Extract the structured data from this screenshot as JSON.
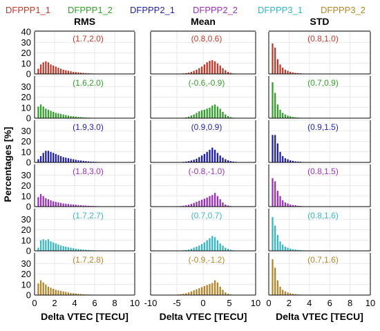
{
  "chart_data": {
    "type": "bar",
    "layout_description": "grid of histograms: 6 rows (one per solution), 3 columns (RMS, Mean, STD)",
    "legend": [
      {
        "name": "DFPPP1_1",
        "color": "#c0392b"
      },
      {
        "name": "DFPPP1_2",
        "color": "#33a02c"
      },
      {
        "name": "DFPPP2_1",
        "color": "#1f1fa8"
      },
      {
        "name": "DFPPP2_2",
        "color": "#9b30b8"
      },
      {
        "name": "DFPPP3_1",
        "color": "#36b7c4"
      },
      {
        "name": "DFPPP3_2",
        "color": "#b5862a"
      }
    ],
    "ylabel": "Percentages [%]",
    "y_ticks": [
      "0",
      "10",
      "20",
      "30",
      "40"
    ],
    "ylim": [
      0,
      40
    ],
    "grid": true,
    "columns": [
      {
        "title": "RMS",
        "xlabel": "Delta VTEC [TECU]",
        "xlim": [
          0,
          10
        ],
        "x_ticks": [
          "0",
          "2",
          "4",
          "6",
          "8",
          "10"
        ],
        "bin_start": 0.0,
        "bin_width": 0.25,
        "panels": [
          {
            "label": "(1.7,2.0)",
            "values": [
              0,
              5,
              9,
              11,
              12,
              11,
              9,
              8,
              7,
              6,
              5,
              4,
              3.5,
              3,
              2.5,
              2,
              1.8,
              1.5,
              1.2,
              1,
              0.8,
              0.6,
              0.5,
              0.4,
              0.3,
              0.2,
              0.15,
              0.1
            ]
          },
          {
            "label": "(1.6,2.0)",
            "values": [
              0,
              11,
              13,
              11,
              9,
              8,
              7,
              6,
              5,
              4.5,
              4,
              3.5,
              3,
              2.5,
              2,
              1.8,
              1.5,
              1.2,
              1,
              0.8,
              0.6,
              0.5,
              0.4,
              0.3,
              0.2,
              0.15,
              0.1,
              0.1
            ]
          },
          {
            "label": "(1.9,3.0)",
            "values": [
              0,
              3,
              6,
              9,
              11,
              11,
              10,
              9,
              8,
              7,
              6,
              5,
              4.5,
              4,
              3.5,
              3,
              2.5,
              2,
              1.8,
              1.5,
              1.2,
              1,
              0.8,
              0.6,
              0.5,
              0.4,
              0.3,
              0.2,
              0.15,
              0.1,
              0.1,
              0.05
            ]
          },
          {
            "label": "(1.8,3.0)",
            "values": [
              0,
              9,
              12,
              10,
              8,
              7,
              6,
              5,
              4.5,
              4,
              3.5,
              3,
              2.8,
              2.5,
              2.2,
              2,
              1.8,
              1.5,
              1.3,
              1.1,
              1,
              0.8,
              0.7,
              0.6,
              0.5,
              0.4,
              0.3,
              0.25,
              0.2,
              0.15,
              0.1,
              0.1
            ]
          },
          {
            "label": "(1.7,2.7)",
            "values": [
              0,
              3,
              10,
              11,
              10,
              11,
              9,
              8,
              7,
              6,
              5,
              4.5,
              4,
              3.5,
              3,
              2.5,
              2,
              1.8,
              1.5,
              1.2,
              1,
              0.8,
              0.6,
              0.5,
              0.4,
              0.3,
              0.2,
              0.15,
              0.1
            ]
          },
          {
            "label": "(1.7,2.8)",
            "values": [
              0,
              11,
              14,
              12,
              10,
              8,
              7,
              6,
              5,
              4.5,
              4,
              3.5,
              3,
              2.5,
              2,
              1.8,
              1.5,
              1.2,
              1,
              0.8,
              0.6,
              0.5,
              0.4,
              0.3,
              0.2,
              0.15,
              0.1,
              0.1
            ]
          }
        ]
      },
      {
        "title": "Mean",
        "xlabel": "Delta VTEC [TECU]",
        "xlim": [
          -10,
          10
        ],
        "x_ticks": [
          "-10",
          "-5",
          "0",
          "5",
          "10"
        ],
        "bin_start": -10.0,
        "bin_width": 0.5,
        "panels": [
          {
            "label": "(0.8,0.6)",
            "values": [
              0,
              0,
              0,
              0,
              0,
              0,
              0,
              0,
              0,
              0.1,
              0.2,
              0.3,
              0.5,
              0.8,
              1.2,
              2,
              3,
              4,
              5.5,
              7,
              9,
              11,
              12.5,
              13,
              12,
              10,
              8,
              5.5,
              3.5,
              2,
              1,
              0.5,
              0.3,
              0.15,
              0.1,
              0,
              0,
              0,
              0,
              0
            ]
          },
          {
            "label": "(-0.6,-0.9)",
            "values": [
              0,
              0,
              0,
              0,
              0,
              0,
              0,
              0,
              0,
              0,
              0.1,
              0.2,
              0.4,
              0.8,
              1.5,
              2.5,
              3.5,
              5,
              6.5,
              7.5,
              8,
              9,
              10,
              12,
              13,
              11,
              9,
              6,
              3.5,
              2,
              1,
              0.5,
              0.2,
              0.1,
              0,
              0,
              0,
              0,
              0,
              0
            ]
          },
          {
            "label": "(0.9,0.9)",
            "values": [
              0,
              0,
              0,
              0,
              0,
              0,
              0,
              0,
              0,
              0.1,
              0.2,
              0.3,
              0.5,
              0.8,
              1.2,
              1.8,
              2.5,
              3.5,
              5,
              6.5,
              8,
              10,
              12,
              14,
              12,
              9,
              6.5,
              4.5,
              3,
              2,
              1.2,
              0.8,
              0.5,
              0.3,
              0.15,
              0.1,
              0,
              0,
              0,
              0
            ]
          },
          {
            "label": "(-0.8,-1.0)",
            "values": [
              0,
              0,
              0,
              0,
              0,
              0,
              0,
              0,
              0.1,
              0.2,
              0.3,
              0.5,
              0.8,
              1.2,
              1.8,
              2.5,
              3.5,
              4.5,
              5.5,
              6.5,
              7.5,
              8.5,
              10,
              11,
              13,
              10,
              7,
              4,
              2,
              1,
              0.5,
              0.2,
              0.1,
              0,
              0,
              0,
              0,
              0,
              0,
              0
            ]
          },
          {
            "label": "(0.7,0.7)",
            "values": [
              0,
              0,
              0,
              0,
              0,
              0,
              0,
              0,
              0,
              0.1,
              0.2,
              0.3,
              0.5,
              0.8,
              1.2,
              2,
              3,
              4,
              5,
              6.5,
              8,
              10,
              12,
              14,
              13,
              10,
              7,
              5,
              3,
              2,
              1,
              0.5,
              0.3,
              0.15,
              0.1,
              0,
              0,
              0,
              0,
              0
            ]
          },
          {
            "label": "(-0.9,-1.2)",
            "values": [
              0,
              0,
              0,
              0,
              0,
              0,
              0,
              0.1,
              0.2,
              0.3,
              0.5,
              0.8,
              1.2,
              1.8,
              2.5,
              3.5,
              4.5,
              5.5,
              6.5,
              7.5,
              8.5,
              9.5,
              10.5,
              11.5,
              14,
              12,
              8,
              5,
              2.5,
              1.2,
              0.6,
              0.3,
              0.1,
              0,
              0,
              0,
              0,
              0,
              0,
              0
            ]
          }
        ]
      },
      {
        "title": "STD",
        "xlabel": "Delta VTEC [TECU]",
        "xlim": [
          0,
          10
        ],
        "x_ticks": [
          "0",
          "2",
          "4",
          "6",
          "8",
          "10"
        ],
        "bin_start": 0.0,
        "bin_width": 0.25,
        "panels": [
          {
            "label": "(0.8,1.0)",
            "values": [
              0,
              29,
              25,
              14,
              9,
              6,
              4,
              3,
              2,
              1.5,
              1,
              0.8,
              0.6,
              0.4,
              0.3,
              0.2,
              0.15,
              0.1
            ]
          },
          {
            "label": "(0.7,0.9)",
            "values": [
              0,
              34,
              24,
              13,
              8,
              5,
              3.5,
              2.5,
              1.8,
              1.2,
              0.8,
              0.6,
              0.4,
              0.3,
              0.2,
              0.15,
              0.1
            ]
          },
          {
            "label": "(0.9,1.5)",
            "values": [
              0,
              26,
              26,
              18,
              10,
              6,
              4,
              3,
              2,
              1.5,
              1,
              0.8,
              0.6,
              0.4,
              0.3,
              0.2,
              0.15,
              0.1,
              0.1
            ]
          },
          {
            "label": "(0.8,1.5)",
            "values": [
              0,
              27,
              24,
              15,
              10,
              6,
              4,
              3,
              2,
              1.5,
              1.2,
              0.8,
              0.6,
              0.4,
              0.3,
              0.2,
              0.15,
              0.1,
              0.1
            ]
          },
          {
            "label": "(0.8,1.6)",
            "values": [
              0,
              32,
              24,
              15,
              9,
              6,
              4,
              3,
              2.2,
              1.6,
              1.2,
              0.9,
              0.7,
              0.5,
              0.4,
              0.3,
              0.2,
              0.15,
              0.1,
              0.1
            ]
          },
          {
            "label": "(0.7,1.6)",
            "values": [
              0,
              34,
              26,
              14,
              8,
              5,
              3.5,
              2.5,
              1.8,
              1.2,
              0.9,
              0.6,
              0.4,
              0.3,
              0.2,
              0.15,
              0.1
            ]
          }
        ]
      }
    ]
  }
}
